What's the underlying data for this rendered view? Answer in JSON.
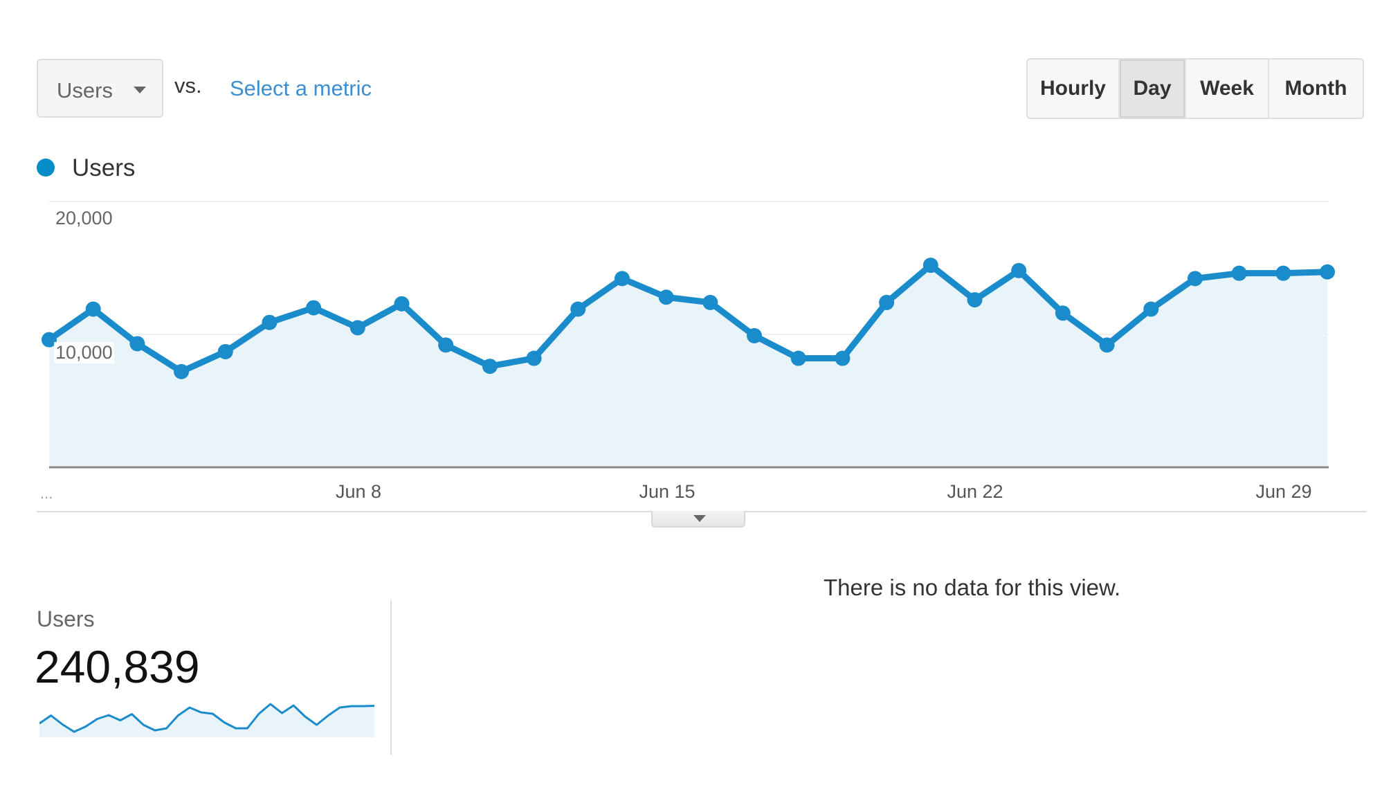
{
  "toolbar": {
    "metric_dropdown": {
      "selected": "Users",
      "icon": "caret-down-icon"
    },
    "vs_label": "vs.",
    "select_metric_link": "Select a metric",
    "granularity": [
      {
        "label": "Hourly",
        "active": false
      },
      {
        "label": "Day",
        "active": true
      },
      {
        "label": "Week",
        "active": false
      },
      {
        "label": "Month",
        "active": false
      }
    ]
  },
  "legend": {
    "label": "Users",
    "color": "#058dc7"
  },
  "colors": {
    "line": "#1a8bcb",
    "fill": "#e8f3fa",
    "grid": "#eeeeee",
    "axis": "#888888"
  },
  "chart_data": {
    "type": "area",
    "title": "",
    "series": [
      {
        "name": "Users",
        "values": [
          9600,
          11900,
          9300,
          7200,
          8700,
          10900,
          12000,
          10500,
          12300,
          9200,
          7600,
          8200,
          11900,
          14200,
          12800,
          12400,
          9900,
          8200,
          8200,
          12400,
          15200,
          12600,
          14800,
          11600,
          9200,
          11900,
          14200,
          14600,
          14600,
          14700
        ]
      }
    ],
    "x": [
      "Jun 1",
      "Jun 2",
      "Jun 3",
      "Jun 4",
      "Jun 5",
      "Jun 6",
      "Jun 7",
      "Jun 8",
      "Jun 9",
      "Jun 10",
      "Jun 11",
      "Jun 12",
      "Jun 13",
      "Jun 14",
      "Jun 15",
      "Jun 16",
      "Jun 17",
      "Jun 18",
      "Jun 19",
      "Jun 20",
      "Jun 21",
      "Jun 22",
      "Jun 23",
      "Jun 24",
      "Jun 25",
      "Jun 26",
      "Jun 27",
      "Jun 28",
      "Jun 29",
      "Jun 30"
    ],
    "x_tick_labels": [
      "...",
      "Jun 8",
      "Jun 15",
      "Jun 22",
      "Jun 29"
    ],
    "y_tick_labels": [
      "20,000",
      "10,000"
    ],
    "xlabel": "",
    "ylabel": "",
    "ylim": [
      0,
      20000
    ],
    "grid": true,
    "legend_position": "top-left"
  },
  "axis": {
    "y_ticks": [
      {
        "label": "20,000"
      },
      {
        "label": "10,000"
      }
    ],
    "x_ticks": [
      {
        "label": "...",
        "index": 0
      },
      {
        "label": "Jun 8",
        "index": 7
      },
      {
        "label": "Jun 15",
        "index": 14
      },
      {
        "label": "Jun 22",
        "index": 21
      },
      {
        "label": "Jun 29",
        "index": 28
      }
    ]
  },
  "collapse_handle": {
    "icon": "caret-down-icon"
  },
  "scorecard": {
    "label": "Users",
    "value": "240,839"
  },
  "table_area": {
    "empty_message": "There is no data for this view."
  }
}
